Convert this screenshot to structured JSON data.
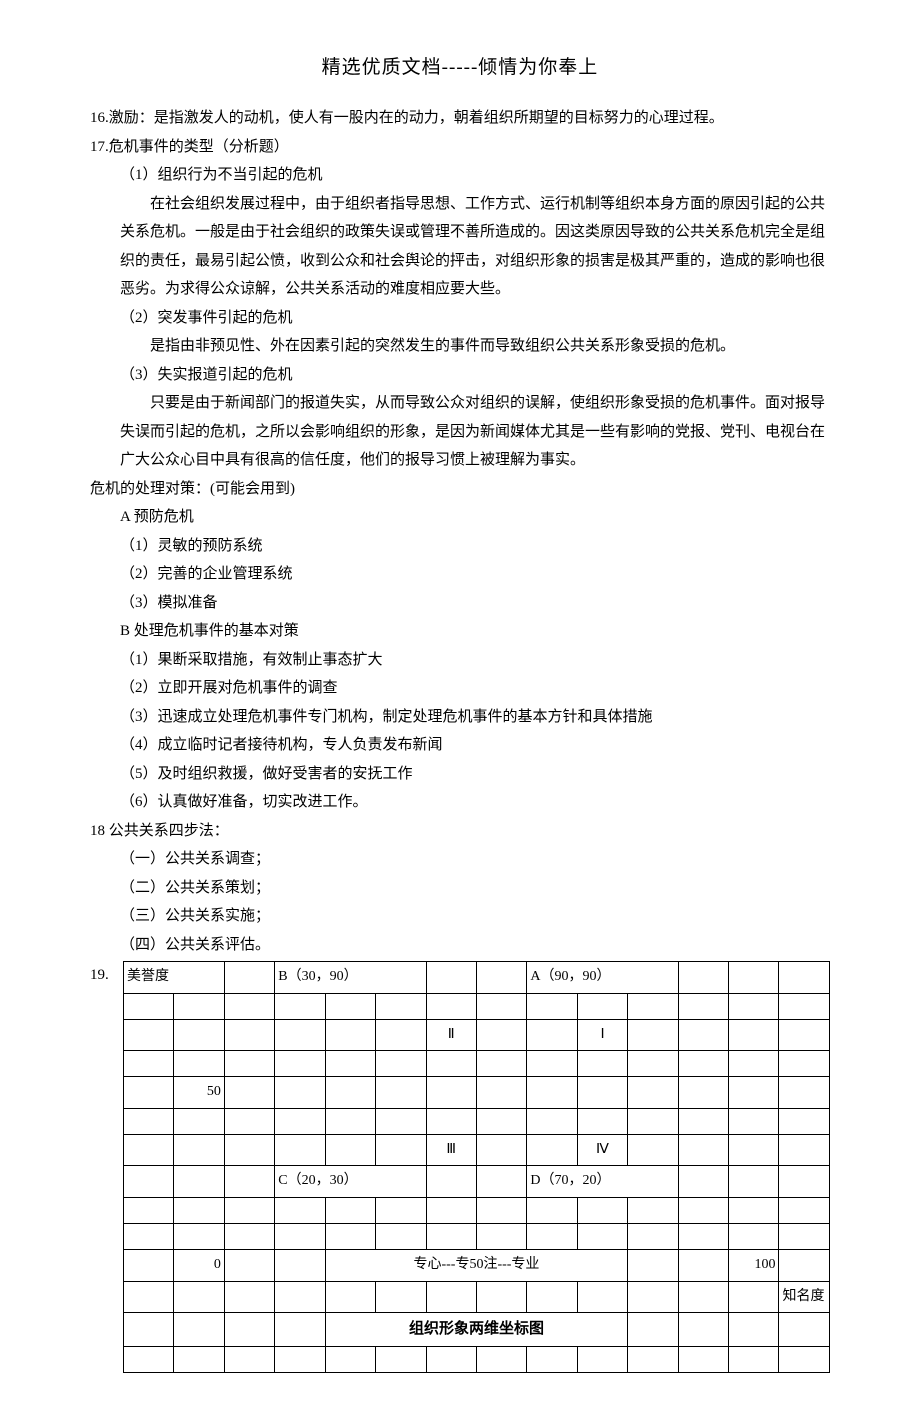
{
  "header": "精选优质文档-----倾情为你奉上",
  "body": {
    "p16": "16.激励：是指激发人的动机，使人有一股内在的动力，朝着组织所期望的目标努力的心理过程。",
    "p17": "17.危机事件的类型（分析题）",
    "p17_1": "（1）组织行为不当引起的危机",
    "p17_1_text": "在社会组织发展过程中，由于组织者指导思想、工作方式、运行机制等组织本身方面的原因引起的公共关系危机。一般是由于社会组织的政策失误或管理不善所造成的。因这类原因导致的公共关系危机完全是组织的责任，最易引起公愤，收到公众和社会舆论的抨击，对组织形象的损害是极其严重的，造成的影响也很恶劣。为求得公众谅解，公共关系活动的难度相应要大些。",
    "p17_2": "（2）突发事件引起的危机",
    "p17_2_text": "是指由非预见性、外在因素引起的突然发生的事件而导致组织公共关系形象受损的危机。",
    "p17_3": "（3）失实报道引起的危机",
    "p17_3_text": "只要是由于新闻部门的报道失实，从而导致公众对组织的误解，使组织形象受损的危机事件。面对报导失误而引起的危机，之所以会影响组织的形象，是因为新闻媒体尤其是一些有影响的党报、党刊、电视台在广大公众心目中具有很高的信任度，他们的报导习惯上被理解为事实。",
    "p_crisis": "危机的处理对策：(可能会用到)",
    "pA": "A 预防危机",
    "pA1": "（1）灵敏的预防系统",
    "pA2": "（2）完善的企业管理系统",
    "pA3": "（3）模拟准备",
    "pB": "B 处理危机事件的基本对策",
    "pB1": "（1）果断采取措施，有效制止事态扩大",
    "pB2": "（2）立即开展对危机事件的调查",
    "pB3": "（3）迅速成立处理危机事件专门机构，制定处理危机事件的基本方针和具体措施",
    "pB4": "（4）成立临时记者接待机构，专人负责发布新闻",
    "pB5": "（5）及时组织救援，做好受害者的安抚工作",
    "pB6": "（6）认真做好准备，切实改进工作。",
    "p18": "18 公共关系四步法：",
    "p18_1": "（一）公共关系调查；",
    "p18_2": "（二）公共关系策划；",
    "p18_3": "（三）公共关系实施；",
    "p18_4": "（四）公共关系评估。",
    "p19": "19."
  },
  "chart": {
    "cols": 14,
    "rows": 14,
    "y_label": "美誉度",
    "x_label": "知名度",
    "y_mid": "50",
    "x_origin": "0",
    "x_end": "100",
    "point_A": "A（90，90）",
    "point_B": "B（30，90）",
    "point_C": "C（20，30）",
    "point_D": "D（70，20）",
    "quad_I": "Ⅰ",
    "quad_II": "Ⅱ",
    "quad_III": "Ⅲ",
    "quad_IV": "Ⅳ",
    "footer_text": "专心---专注---专业",
    "footer_mid": "50",
    "caption": "组织形象两维坐标图",
    "colors": {
      "border": "#000000",
      "bg": "#ffffff"
    }
  }
}
